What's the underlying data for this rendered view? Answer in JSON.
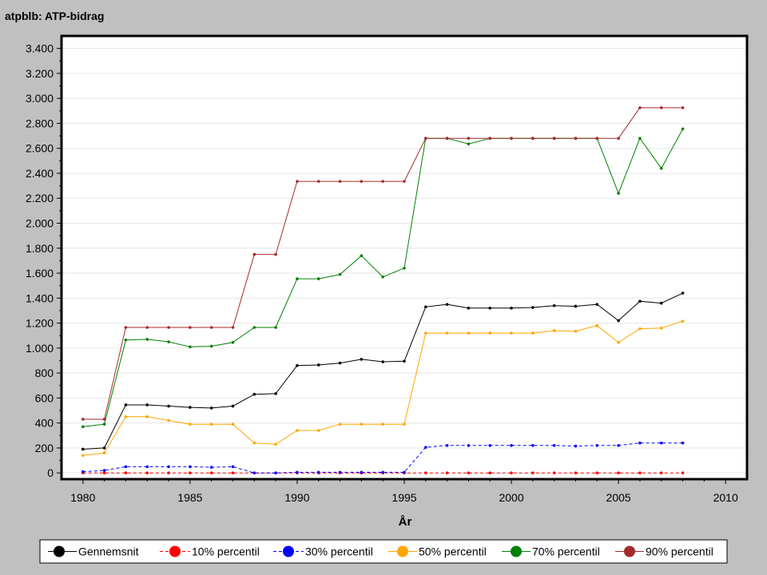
{
  "chart_data": {
    "type": "line",
    "title": "atpblb: ATP-bidrag",
    "xlabel": "År",
    "ylabel": "",
    "xlim": [
      1979,
      2011
    ],
    "ylim": [
      -50,
      3500
    ],
    "x_ticks": [
      1980,
      1985,
      1990,
      1995,
      2000,
      2005,
      2010
    ],
    "y_ticks": [
      0,
      200,
      400,
      600,
      800,
      1000,
      1200,
      1400,
      1600,
      1800,
      2000,
      2200,
      2400,
      2600,
      2800,
      3000,
      3200,
      3400
    ],
    "y_tick_labels": [
      "0",
      "200",
      "400",
      "600",
      "800",
      "1.000",
      "1.200",
      "1.400",
      "1.600",
      "1.800",
      "2.000",
      "2.200",
      "2.400",
      "2.600",
      "2.800",
      "3.000",
      "3.200",
      "3.400"
    ],
    "grid": "horizontal",
    "legend_position": "bottom",
    "x": [
      1980,
      1981,
      1982,
      1983,
      1984,
      1985,
      1986,
      1987,
      1988,
      1989,
      1990,
      1991,
      1992,
      1993,
      1994,
      1995,
      1996,
      1997,
      1998,
      1999,
      2000,
      2001,
      2002,
      2003,
      2004,
      2005,
      2006,
      2007,
      2008
    ],
    "series": [
      {
        "name": "Gennemsnit",
        "color": "#000000",
        "dash": "solid",
        "values": [
          190,
          200,
          545,
          545,
          535,
          525,
          520,
          535,
          630,
          635,
          860,
          865,
          880,
          910,
          890,
          895,
          1330,
          1350,
          1320,
          1320,
          1320,
          1325,
          1340,
          1335,
          1350,
          1220,
          1375,
          1360,
          1440
        ]
      },
      {
        "name": "10% percentil",
        "color": "#ff0000",
        "dash": "dashed",
        "values": [
          0,
          0,
          0,
          0,
          0,
          0,
          0,
          0,
          0,
          0,
          0,
          0,
          0,
          0,
          0,
          0,
          0,
          0,
          0,
          0,
          0,
          0,
          0,
          0,
          0,
          0,
          0,
          0,
          0
        ]
      },
      {
        "name": "30% percentil",
        "color": "#0000ff",
        "dash": "dashed",
        "values": [
          10,
          20,
          50,
          50,
          50,
          50,
          45,
          50,
          0,
          0,
          5,
          5,
          5,
          5,
          5,
          5,
          205,
          220,
          220,
          220,
          220,
          220,
          220,
          215,
          220,
          220,
          240,
          240,
          240
        ]
      },
      {
        "name": "50% percentil",
        "color": "#ffa500",
        "dash": "solid",
        "values": [
          140,
          160,
          450,
          450,
          420,
          390,
          390,
          390,
          240,
          230,
          340,
          340,
          390,
          390,
          390,
          390,
          1120,
          1120,
          1120,
          1120,
          1120,
          1120,
          1140,
          1135,
          1180,
          1045,
          1155,
          1160,
          1215
        ]
      },
      {
        "name": "70% percentil",
        "color": "#008000",
        "dash": "solid",
        "values": [
          370,
          390,
          1065,
          1070,
          1050,
          1010,
          1015,
          1045,
          1165,
          1165,
          1555,
          1555,
          1590,
          1740,
          1570,
          1640,
          2680,
          2680,
          2635,
          2680,
          2680,
          2680,
          2680,
          2680,
          2680,
          2240,
          2680,
          2440,
          2755
        ]
      },
      {
        "name": "90% percentil",
        "color": "#a52a2a",
        "dash": "solid",
        "values": [
          430,
          430,
          1165,
          1165,
          1165,
          1165,
          1165,
          1165,
          1750,
          1750,
          2335,
          2335,
          2335,
          2335,
          2335,
          2335,
          2680,
          2680,
          2680,
          2680,
          2680,
          2680,
          2680,
          2680,
          2680,
          2680,
          2925,
          2925,
          2925
        ]
      }
    ]
  }
}
